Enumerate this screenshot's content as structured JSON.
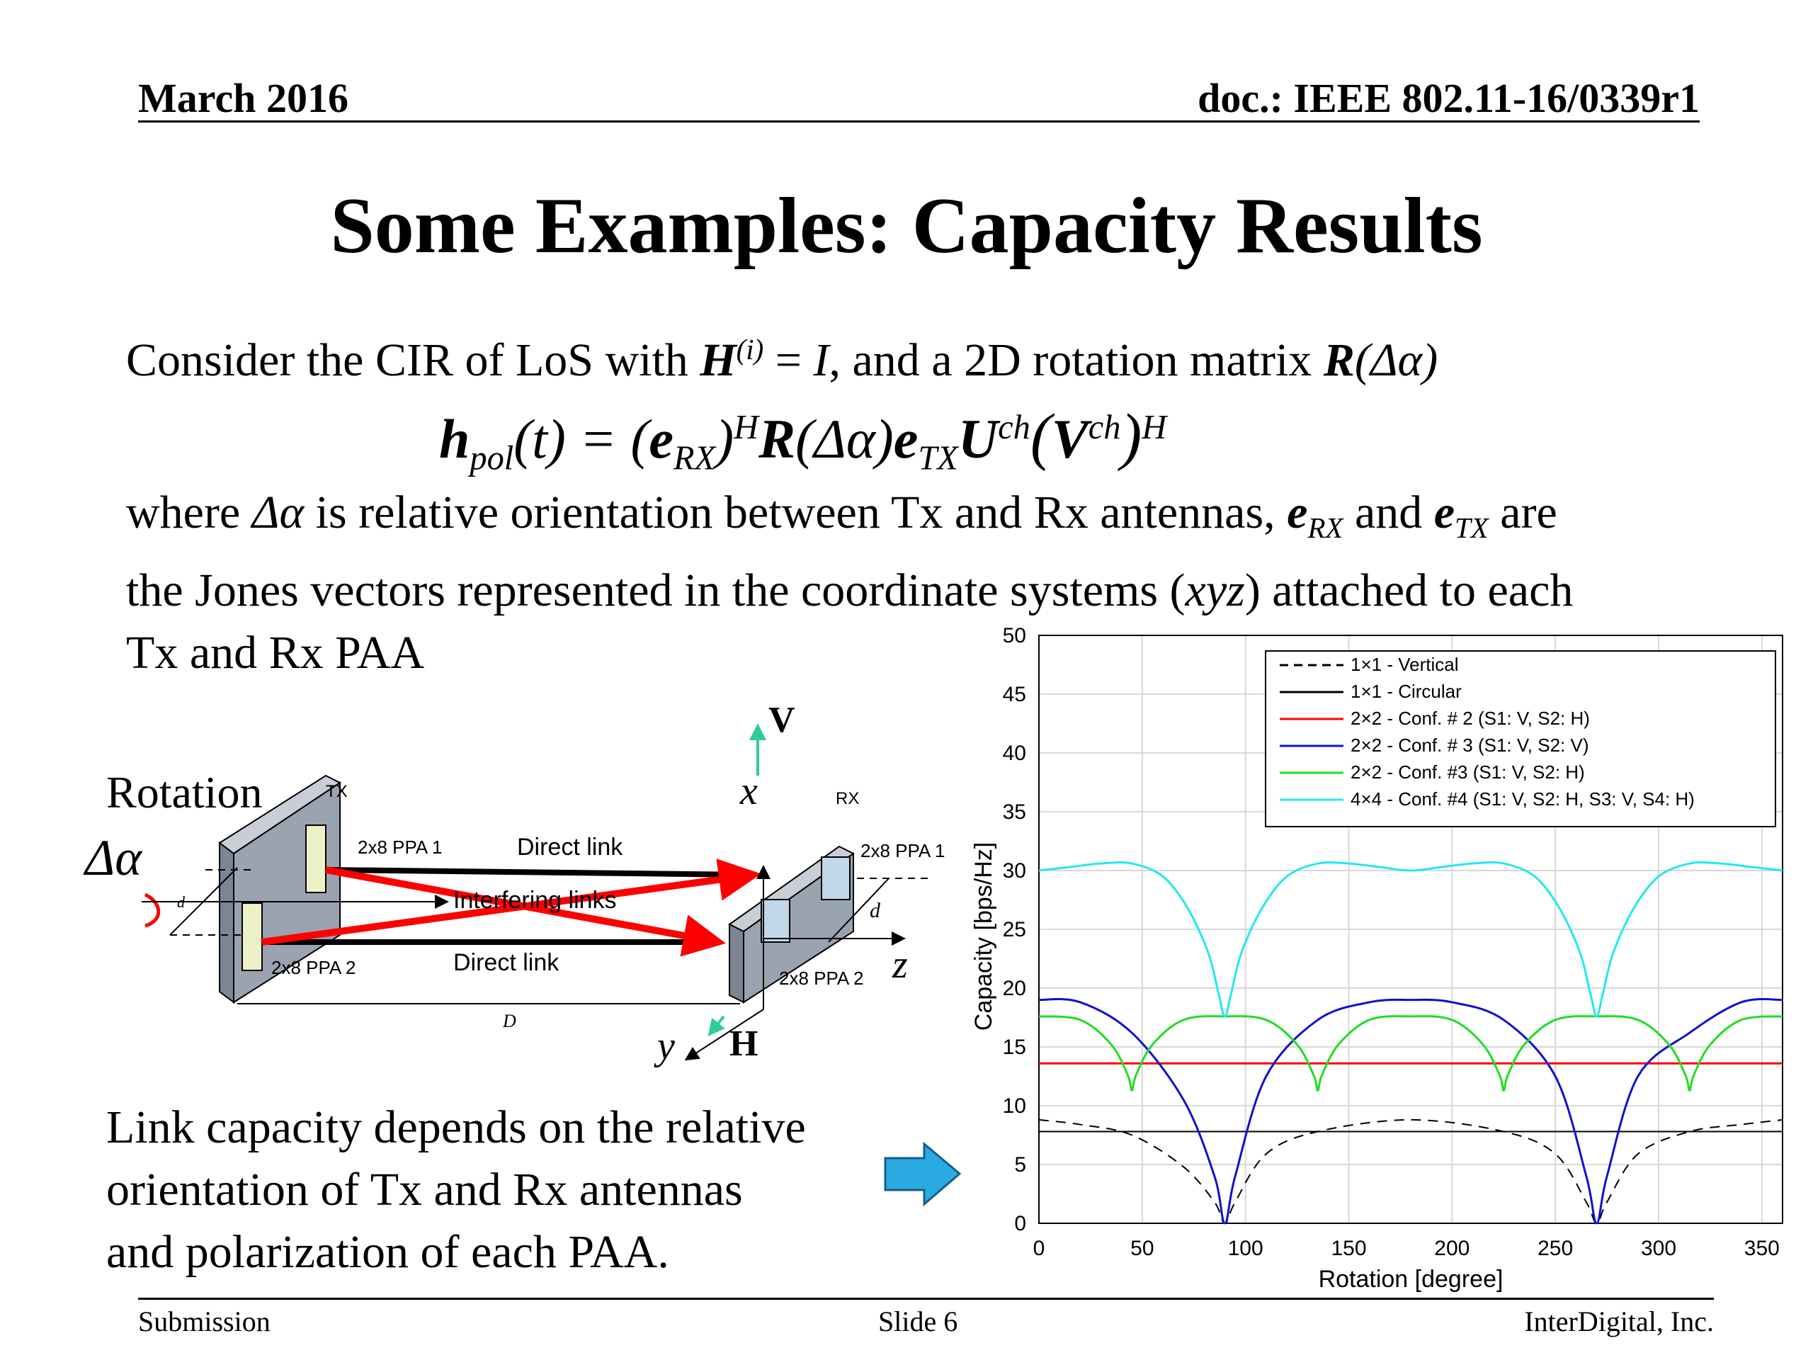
{
  "header": {
    "date": "March 2016",
    "doc": "doc.: IEEE 802.11-16/0339r1"
  },
  "title": "Some Examples: Capacity Results",
  "intro": {
    "prefix": "Consider the CIR of LoS with ",
    "H": "H",
    "H_sup": "(i)",
    "mid": " = ",
    "I": "I",
    "suffix": ", and a 2D rotation matrix ",
    "R": "R",
    "R_arg": "(Δα)"
  },
  "equation": {
    "h": "h",
    "h_sub": "pol",
    "t": "(t) = (",
    "e": "e",
    "rx_sub": "RX",
    "close_h": ")",
    "sup_H": "H",
    "R": "R",
    "R_arg": "(Δα)",
    "e2": "e",
    "tx_sub": "TX",
    "U": "U",
    "ch": "ch",
    "open_v": "(",
    "V": "V",
    "ch2": "ch",
    "close_v": ")",
    "sup_H2": "H"
  },
  "paragraph": {
    "a": "where ",
    "delta": "Δα",
    "b": " is relative orientation between Tx and Rx antennas, ",
    "e": "e",
    "rx": "RX",
    "c": " and ",
    "e2": "e",
    "tx": "TX",
    "d": " are",
    "line2a": "the Jones vectors represented in the coordinate systems (",
    "xyz": "xyz",
    "line2b": ") attached to each",
    "line3": "Tx and Rx PAA"
  },
  "diagram": {
    "rotation": "Rotation",
    "delta": "Δα",
    "tx": "TX",
    "rx": "RX",
    "tx_ppa1": "2x8 PPA 1",
    "tx_ppa2": "2x8 PPA 2",
    "rx_ppa1": "2x8 PPA 1",
    "rx_ppa2": "2x8 PPA 2",
    "direct_top": "Direct link",
    "direct_bottom": "Direct link",
    "interfering": "Interfering links",
    "d_left": "d",
    "d_right": "d",
    "D": "D",
    "V": "V",
    "H": "H",
    "x": "x",
    "y": "y",
    "z": "z",
    "colors": {
      "red": "#ff0000",
      "arrow_green": "#2ecc9a",
      "panel": "#9aa3b0"
    }
  },
  "caption": {
    "l1": "Link capacity depends on the relative",
    "l2": "orientation of Tx and Rx antennas",
    "l3": "and polarization of each PAA."
  },
  "arrow_color": "#29abe2",
  "chart_data": {
    "type": "line",
    "xlabel": "Rotation [degree]",
    "ylabel": "Capacity [bps/Hz]",
    "xlim": [
      0,
      360
    ],
    "ylim": [
      0,
      50
    ],
    "xticks": [
      0,
      50,
      100,
      150,
      200,
      250,
      300,
      350
    ],
    "yticks": [
      0,
      5,
      10,
      15,
      20,
      25,
      30,
      35,
      40,
      45,
      50
    ],
    "grid": true,
    "legend_position": "top-right",
    "series": [
      {
        "name": "1×1 - Vertical",
        "color": "#000000",
        "dash": true,
        "x": [
          0,
          20,
          45,
          70,
          85,
          90,
          95,
          110,
          135,
          180,
          225,
          250,
          265,
          270,
          275,
          290,
          315,
          340,
          360
        ],
        "y": [
          8.8,
          8.4,
          7.5,
          4.8,
          1.8,
          0,
          1.8,
          5.9,
          7.8,
          8.8,
          7.8,
          5.9,
          1.8,
          0,
          1.8,
          5.9,
          7.8,
          8.4,
          8.8
        ]
      },
      {
        "name": "1×1 - Circular",
        "color": "#000000",
        "dash": false,
        "x": [
          0,
          360
        ],
        "y": [
          7.8,
          7.8
        ]
      },
      {
        "name": "2×2 - Conf. # 2 (S1: V, S2: H)",
        "color": "#ff0000",
        "dash": false,
        "x": [
          0,
          360
        ],
        "y": [
          13.6,
          13.6
        ]
      },
      {
        "name": "2×2 - Conf. # 3 (S1: V, S2: V)",
        "color": "#1010d0",
        "dash": false,
        "x": [
          0,
          20,
          45,
          70,
          85,
          90,
          95,
          110,
          135,
          160,
          180,
          200,
          225,
          250,
          265,
          270,
          275,
          290,
          315,
          340,
          360
        ],
        "y": [
          19,
          18.8,
          16.2,
          10.5,
          4,
          0,
          4,
          12.5,
          17.3,
          18.8,
          19,
          18.8,
          17.3,
          12.5,
          4,
          0,
          4,
          12.5,
          16.2,
          18.8,
          19
        ]
      },
      {
        "name": "2×2 - Conf. #3 (S1: V, S2: H)",
        "color": "#22dd22",
        "dash": false,
        "x": [
          0,
          20,
          35,
          43,
          45,
          47,
          55,
          70,
          90,
          110,
          125,
          133,
          135,
          137,
          145,
          160,
          180,
          200,
          215,
          223,
          225,
          227,
          235,
          250,
          270,
          290,
          305,
          313,
          315,
          317,
          325,
          340,
          360
        ],
        "y": [
          17.6,
          17.3,
          15.2,
          12.6,
          11.3,
          12.6,
          15.2,
          17.3,
          17.6,
          17.3,
          15.2,
          12.6,
          11.3,
          12.6,
          15.2,
          17.3,
          17.6,
          17.3,
          15.2,
          12.6,
          11.3,
          12.6,
          15.2,
          17.3,
          17.6,
          17.3,
          15.2,
          12.6,
          11.3,
          12.6,
          15.2,
          17.3,
          17.6
        ]
      },
      {
        "name": "4×4 - Conf. #4 (S1: V, S2: H, S3: V, S4: H)",
        "color": "#22e8f0",
        "dash": false,
        "x": [
          0,
          15,
          30,
          45,
          60,
          72,
          82,
          87,
          90,
          93,
          98,
          108,
          120,
          135,
          150,
          165,
          180,
          195,
          210,
          225,
          240,
          252,
          262,
          267,
          270,
          273,
          278,
          288,
          300,
          315,
          330,
          345,
          360
        ],
        "y": [
          30,
          30.3,
          30.6,
          30.6,
          29.5,
          26.8,
          23,
          19.5,
          17.6,
          19.5,
          23,
          26.8,
          29.5,
          30.6,
          30.6,
          30.3,
          30,
          30.3,
          30.6,
          30.6,
          29.5,
          26.8,
          23,
          19.5,
          17.6,
          19.5,
          23,
          26.8,
          29.5,
          30.6,
          30.6,
          30.3,
          30
        ]
      }
    ]
  },
  "footer": {
    "left": "Submission",
    "center": "Slide 6",
    "right": "InterDigital, Inc."
  }
}
